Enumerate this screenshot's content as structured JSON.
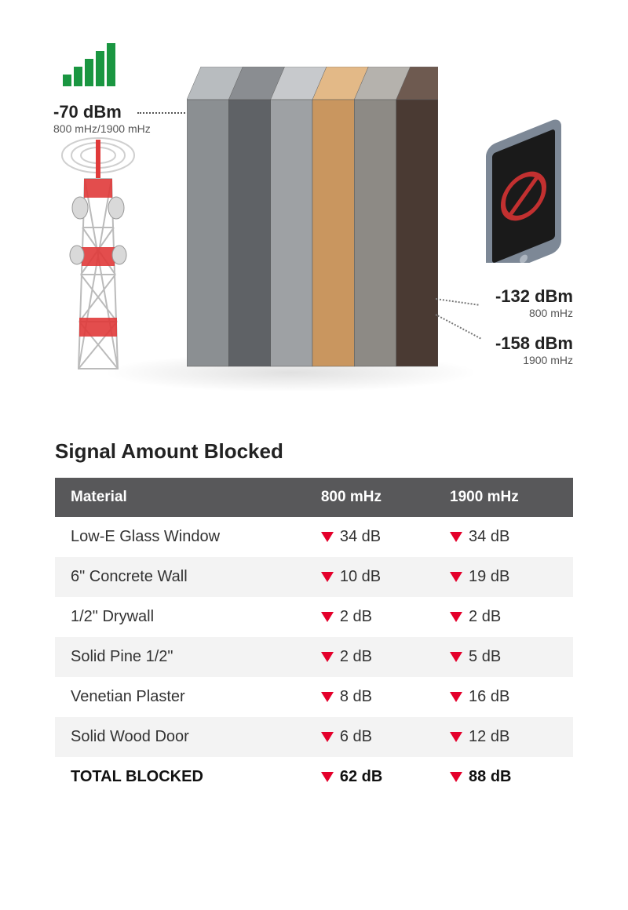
{
  "diagram": {
    "input": {
      "dbm": "-70 dBm",
      "freq": "800 mHz/1900 mHz"
    },
    "signal_bar_color": "#1a9641",
    "signal_bar_heights": [
      15,
      25,
      35,
      45,
      55
    ],
    "materials": [
      {
        "front": "#8b8f92",
        "top": "#b8bcbf"
      },
      {
        "front": "#5f6266",
        "top": "#8a8d91"
      },
      {
        "front": "#9ea1a4",
        "top": "#c7c9cc"
      },
      {
        "front": "#c9965f",
        "top": "#e3b987"
      },
      {
        "front": "#8d8a85",
        "top": "#b5b2ad"
      },
      {
        "front": "#4a3a33",
        "top": "#6e5a50"
      }
    ],
    "output": [
      {
        "dbm": "-132 dBm",
        "freq": "800 mHz"
      },
      {
        "dbm": "-158 dBm",
        "freq": "1900 mHz"
      }
    ],
    "phone_body": "#7d8896",
    "phone_screen": "#1a1a1a",
    "no_signal_color": "#c23030",
    "tower_red": "#e03a3a",
    "tower_white": "#f5f5f5"
  },
  "table": {
    "title": "Signal Amount Blocked",
    "header_bg": "#58585a",
    "header_fg": "#ffffff",
    "row_alt_bg": "#f3f3f3",
    "arrow_color": "#e4002b",
    "columns": [
      "Material",
      "800 mHz",
      "1900 mHz"
    ],
    "rows": [
      {
        "material": "Low-E Glass Window",
        "v800": "34 dB",
        "v1900": "34 dB"
      },
      {
        "material": "6\" Concrete Wall",
        "v800": "10 dB",
        "v1900": "19 dB"
      },
      {
        "material": "1/2\" Drywall",
        "v800": "2 dB",
        "v1900": "2 dB"
      },
      {
        "material": "Solid Pine 1/2\"",
        "v800": "2 dB",
        "v1900": "5 dB"
      },
      {
        "material": "Venetian Plaster",
        "v800": "8 dB",
        "v1900": "16 dB"
      },
      {
        "material": "Solid Wood Door",
        "v800": "6 dB",
        "v1900": "12 dB"
      }
    ],
    "total": {
      "label": "TOTAL BLOCKED",
      "v800": "62 dB",
      "v1900": "88 dB"
    }
  }
}
